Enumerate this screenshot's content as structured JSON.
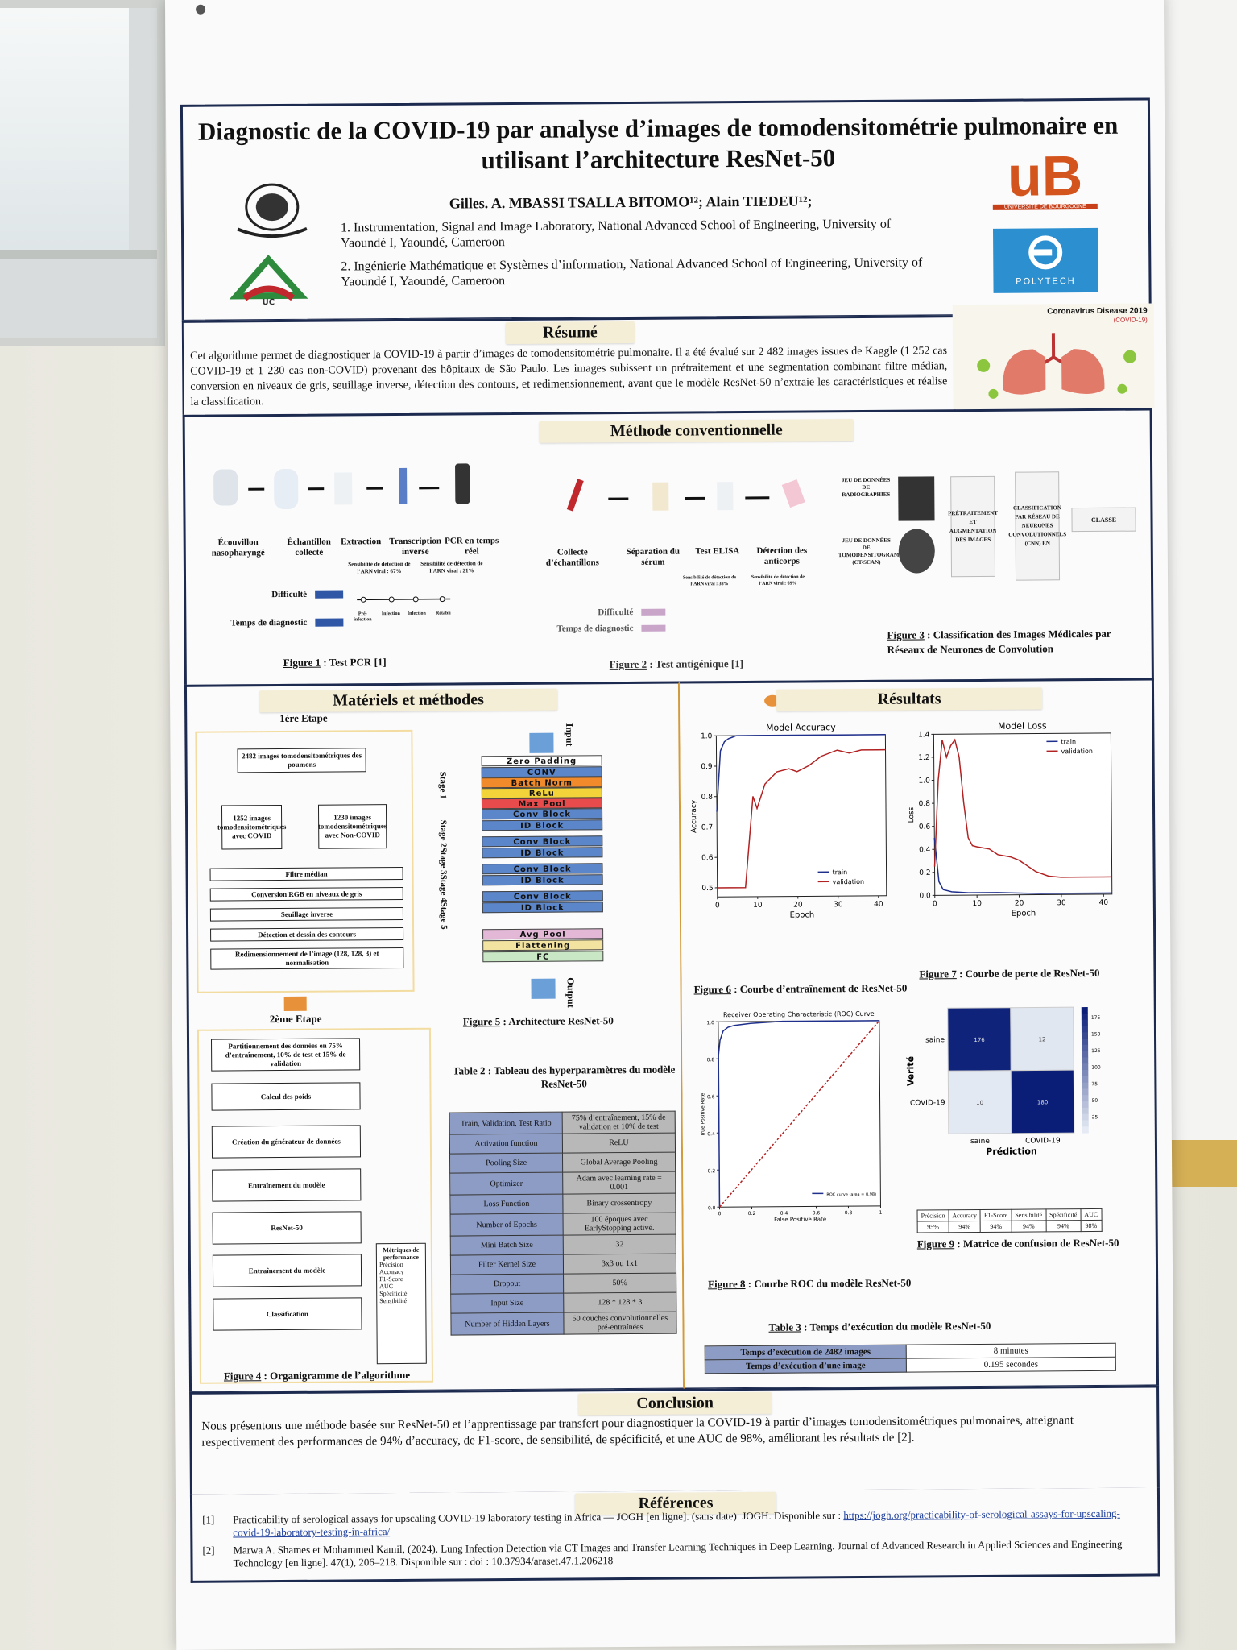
{
  "poster": {
    "title": "Diagnostic de la COVID-19 par analyse d’images de tomodensitométrie pulmonaire en utilisant l’architecture ResNet-50",
    "authors": "Gilles. A. MBASSI TSALLA BITOMO¹²; Alain TIEDEU¹²;",
    "affiliation_1": "1. Instrumentation, Signal and Image Laboratory, National Advanced School of Engineering, University of Yaoundé I, Yaoundé, Cameroon",
    "affiliation_2": "2. Ingénierie Mathématique et Systèmes d’information, National Advanced School of Engineering, University of Yaoundé I, Yaoundé, Cameroon",
    "logo_ub_subtitle": "UNIVERSITÉ DE BOURGOGNE",
    "logo_polytech": "POLYTECH",
    "logo_uc": "UC"
  },
  "resume": {
    "heading": "Résumé",
    "text": "Cet algorithme permet de diagnostiquer la COVID-19 à partir d’images de tomodensitométrie pulmonaire. Il a été évalué sur 2 482 images issues de Kaggle (1 252 cas COVID-19 et 1 230 cas non-COVID) provenant des hôpitaux de São Paulo. Les images subissent un prétraitement et une segmentation combinant filtre médian, conversion en niveaux de gris, seuillage inverse, détection des contours, et redimensionnement, avant que le modèle ResNet-50 n’extraie les caractéristiques et réalise la classification.",
    "banner": "Coronavirus Disease 2019",
    "banner_sub": "(COVID-19)"
  },
  "methode_conv": {
    "heading": "Méthode conventionnelle",
    "pcr_steps": [
      "Écouvillon nasopharyngé",
      "Échantillon collecté",
      "Extraction",
      "Transcription inverse",
      "PCR en temps réel"
    ],
    "pcr_sens_1": "Sensibilité de détection de l’ARN viral : 67%",
    "pcr_sens_2": "Sensibilité de détection de l’ARN viral : 21%",
    "difficulte": "Difficulté",
    "temps": "Temps de diagnostic",
    "fig1": "Figure 1",
    "fig1_text": ": Test PCR [1]",
    "ag_steps": [
      "Collecte d’échantillons",
      "Séparation du sérum",
      "Test ELISA",
      "Détection des anticorps"
    ],
    "ag_sens_1": "Sensibilité de détection de l’ARN viral : 38%",
    "ag_sens_2": "Sensibilité de détection de l’ARN viral : 69%",
    "fig2": "Figure 2",
    "fig2_text": ": Test antigénique [1]",
    "timeline": [
      "Pré-infection",
      "Infection",
      "Infection",
      "Rétabli"
    ],
    "cnn_inputs": [
      "JEU DE DONNÉES DE RADIOGRAPHIES",
      "JEU DE DONNÉES DE TOMODENSITOGRAMMES (CT-SCAN)"
    ],
    "cnn_steps": [
      "PRÉTRAITEMENT ET AUGMENTATION DES IMAGES",
      "CLASSIFICATION PAR RÉSEAU DE NEURONES CONVOLUTIONNELS (CNN) EN",
      "CLASSE"
    ],
    "fig3": "Figure 3",
    "fig3_text": ": Classification des Images Médicales par Réseaux de Neurones de Convolution"
  },
  "materiels": {
    "heading": "Matériels et méthodes",
    "etape1": "1ère Etape",
    "flow1": [
      "2482 images tomodensitométriques des poumons",
      "1252 images tomodensitométriques avec COVID",
      "1230 images tomodensitométriques avec Non-COVID",
      "Filtre médian",
      "Conversion RGB en niveaux de gris",
      "Seuillage inverse",
      "Détection et dessin des contours",
      "Redimensionnement de l’image (128, 128, 3) et normalisation"
    ],
    "etape2": "2ème Etape",
    "flow2": [
      "Partitionnement des données en 75% d’entraînement, 10% de test et 15% de validation",
      "Calcul des poids",
      "Création du générateur de données",
      "Entraînement du modèle",
      "ResNet-50",
      "Entraînement du modèle",
      "Classification"
    ],
    "metrics_title": "Métriques de performance",
    "metrics": [
      "Précision",
      "Accuracy",
      "F1-Score",
      "AUC",
      "Spécificité",
      "Sensibilité"
    ],
    "fig4": "Figure 4",
    "fig4_text": ": Organigramme de l’algorithme",
    "arch_input": "Input",
    "arch_output": "Output",
    "arch_blocks": [
      "Zero Padding",
      "CONV",
      "Batch Norm",
      "ReLu",
      "Max Pool",
      "Conv Block",
      "ID Block",
      "Conv Block",
      "ID Block",
      "Conv Block",
      "ID Block",
      "Conv Block",
      "ID Block",
      "Avg Pool",
      "Flattening",
      "FC"
    ],
    "stages": [
      "Stage 1",
      "Stage 2",
      "Stage 3",
      "Stage 4",
      "Stage 5"
    ],
    "fig5": "Figure 5",
    "fig5_text": ": Architecture ResNet-50",
    "table2_title": "Table 2 : Tableau des hyperparamètres du modèle ResNet-50",
    "hyperparams": [
      [
        "Train, Validation, Test Ratio",
        "75% d’entraînement, 15% de validation et 10% de test"
      ],
      [
        "Activation function",
        "ReLU"
      ],
      [
        "Pooling Size",
        "Global Average Pooling"
      ],
      [
        "Optimizer",
        "Adam avec learning rate = 0.001"
      ],
      [
        "Loss Function",
        "Binary crossentropy"
      ],
      [
        "Number of Epochs",
        "100 époques avec EarlyStopping activé."
      ],
      [
        "Mini Batch Size",
        "32"
      ],
      [
        "Filter Kernel Size",
        "3x3 ou 1x1"
      ],
      [
        "Dropout",
        "50%"
      ],
      [
        "Input Size",
        "128 * 128 * 3"
      ],
      [
        "Number of Hidden Layers",
        "50 couches convolutionnelles pré-entraînées"
      ]
    ]
  },
  "resultats": {
    "heading": "Résultats",
    "fig6": "Figure 6",
    "fig6_text": ": Courbe d’entraînement de ResNet-50",
    "fig7": "Figure 7",
    "fig7_text": ": Courbe de perte de ResNet-50",
    "fig8": "Figure 8",
    "fig8_text": ": Courbe ROC du modèle ResNet-50",
    "fig9": "Figure 9",
    "fig9_text": ": Matrice de confusion de ResNet-50",
    "metrics_header": [
      "Précision",
      "Accuracy",
      "F1-Score",
      "Sensibilité",
      "Spécificité",
      "AUC"
    ],
    "metrics_values": [
      "95%",
      "94%",
      "94%",
      "94%",
      "94%",
      "98%"
    ],
    "table3_title": "Table 3",
    "table3_text": ": Temps d’exécution du modèle ResNet-50",
    "exec_rows": [
      [
        "Temps d’exécution de 2482 images",
        "8 minutes"
      ],
      [
        "Temps d’exécution d’une image",
        "0.195 secondes"
      ]
    ]
  },
  "conclusion": {
    "heading": "Conclusion",
    "text": "Nous présentons une méthode basée sur ResNet-50 et l’apprentissage par transfert pour diagnostiquer la COVID-19 à partir d’images tomodensitométriques pulmonaires, atteignant respectivement des performances de 94% d’accuracy, de F1-score, de sensibilité, de spécificité, et une AUC de 98%, améliorant les résultats de [2]."
  },
  "references": {
    "heading": "Références",
    "r1_num": "[1]",
    "r1_text": "Practicability of serological assays for upscaling COVID-19 laboratory testing in Africa — JOGH [en ligne]. (sans date). JOGH. Disponible sur :",
    "r1_link": "https://jogh.org/practicability-of-serological-assays-for-upscaling-covid-19-laboratory-testing-in-africa/",
    "r2_num": "[2]",
    "r2_text": "Marwa A. Shames et Mohammed Kamil, (2024). Lung Infection Detection via CT Images and Transfer Learning Techniques in Deep Learning. Journal of Advanced Research in Applied Sciences and Engineering Technology [en ligne]. 47(1), 206–218. Disponible sur : doi : 10.37934/araset.47.1.206218"
  },
  "chart_data": [
    {
      "type": "line",
      "title": "Model Accuracy",
      "xlabel": "Epoch",
      "ylabel": "Accuracy",
      "xlim": [
        0,
        42
      ],
      "ylim": [
        0.47,
        1.0
      ],
      "xticks": [
        0,
        10,
        20,
        30,
        40
      ],
      "yticks": [
        0.5,
        0.6,
        0.7,
        0.8,
        0.9,
        1.0
      ],
      "legend": "bottom-right",
      "series": [
        {
          "name": "train",
          "color": "#1f2f8c",
          "x": [
            0,
            1,
            2,
            3,
            4,
            5,
            10,
            20,
            30,
            40,
            42
          ],
          "y": [
            0.75,
            0.95,
            0.98,
            0.99,
            0.995,
            1.0,
            1.0,
            1.0,
            1.0,
            1.0,
            1.0
          ]
        },
        {
          "name": "validation",
          "color": "#b22222",
          "x": [
            0,
            3,
            7,
            9,
            10,
            12,
            15,
            18,
            20,
            23,
            26,
            30,
            33,
            36,
            40,
            42
          ],
          "y": [
            0.5,
            0.5,
            0.5,
            0.8,
            0.76,
            0.84,
            0.88,
            0.89,
            0.88,
            0.9,
            0.93,
            0.95,
            0.94,
            0.95,
            0.95,
            0.95
          ]
        }
      ]
    },
    {
      "type": "line",
      "title": "Model Loss",
      "xlabel": "Epoch",
      "ylabel": "Loss",
      "xlim": [
        0,
        42
      ],
      "ylim": [
        0,
        1.4
      ],
      "xticks": [
        0,
        10,
        20,
        30,
        40
      ],
      "yticks": [
        0.0,
        0.2,
        0.4,
        0.6,
        0.8,
        1.0,
        1.2,
        1.4
      ],
      "legend": "top-right",
      "series": [
        {
          "name": "train",
          "color": "#1f2f8c",
          "x": [
            0,
            1,
            2,
            4,
            8,
            15,
            25,
            40,
            42
          ],
          "y": [
            0.5,
            0.12,
            0.05,
            0.03,
            0.02,
            0.02,
            0.01,
            0.01,
            0.01
          ]
        },
        {
          "name": "validation",
          "color": "#b22222",
          "x": [
            0,
            1,
            2,
            3,
            4,
            5,
            6,
            7,
            8,
            9,
            10,
            13,
            15,
            18,
            20,
            24,
            27,
            30,
            35,
            40,
            42
          ],
          "y": [
            0.25,
            1.0,
            1.35,
            1.2,
            1.3,
            1.35,
            1.2,
            0.8,
            0.5,
            0.43,
            0.42,
            0.4,
            0.35,
            0.33,
            0.3,
            0.2,
            0.16,
            0.15,
            0.15,
            0.15,
            0.15
          ]
        }
      ]
    },
    {
      "type": "line",
      "title": "Receiver Operating Characteristic (ROC) Curve",
      "xlabel": "False Positive Rate",
      "ylabel": "True Positive Rate",
      "xlim": [
        0,
        1
      ],
      "ylim": [
        0,
        1
      ],
      "xticks": [
        0.0,
        0.2,
        0.4,
        0.6,
        0.8,
        1.0
      ],
      "yticks": [
        0.0,
        0.2,
        0.4,
        0.6,
        0.8,
        1.0
      ],
      "legend": "bottom-right",
      "series": [
        {
          "name": "ROC curve (area = 0.98)",
          "color": "#1f2f8c",
          "x": [
            0,
            0,
            0.01,
            0.03,
            0.06,
            0.1,
            0.2,
            0.4,
            0.7,
            1.0
          ],
          "y": [
            0,
            0.82,
            0.9,
            0.95,
            0.97,
            0.98,
            0.99,
            1.0,
            1.0,
            1.0
          ]
        },
        {
          "name": "",
          "color": "#b22222",
          "x": [
            0,
            1
          ],
          "y": [
            0,
            1
          ]
        }
      ]
    },
    {
      "type": "heatmap",
      "title": "",
      "xlabel": "Prédiction",
      "ylabel": "Verité",
      "x": [
        "saine",
        "COVID-19"
      ],
      "y": [
        "saine",
        "COVID-19"
      ],
      "values": [
        [
          176,
          12
        ],
        [
          10,
          180
        ]
      ],
      "colorbar_ticks": [
        25,
        50,
        75,
        100,
        125,
        150,
        175
      ]
    }
  ]
}
